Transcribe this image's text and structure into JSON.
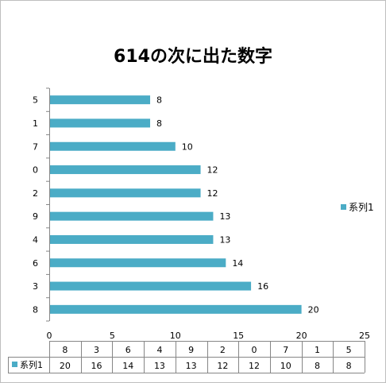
{
  "chart_data": {
    "type": "bar",
    "orientation": "horizontal",
    "title": "614の次に出た数字",
    "categories": [
      "8",
      "3",
      "6",
      "4",
      "9",
      "2",
      "0",
      "7",
      "1",
      "5"
    ],
    "series": [
      {
        "name": "系列1",
        "values": [
          20,
          16,
          14,
          13,
          13,
          12,
          12,
          10,
          8,
          8
        ]
      }
    ],
    "xlim": [
      0,
      25
    ],
    "x_ticks": [
      0,
      5,
      10,
      15,
      20,
      25
    ],
    "xlabel": "",
    "ylabel": "",
    "grid": false,
    "legend_position": "right",
    "data_table": true,
    "colors": {
      "bar": "#4bacc6",
      "axis": "#868686",
      "frame": "#bfbfbf"
    }
  }
}
